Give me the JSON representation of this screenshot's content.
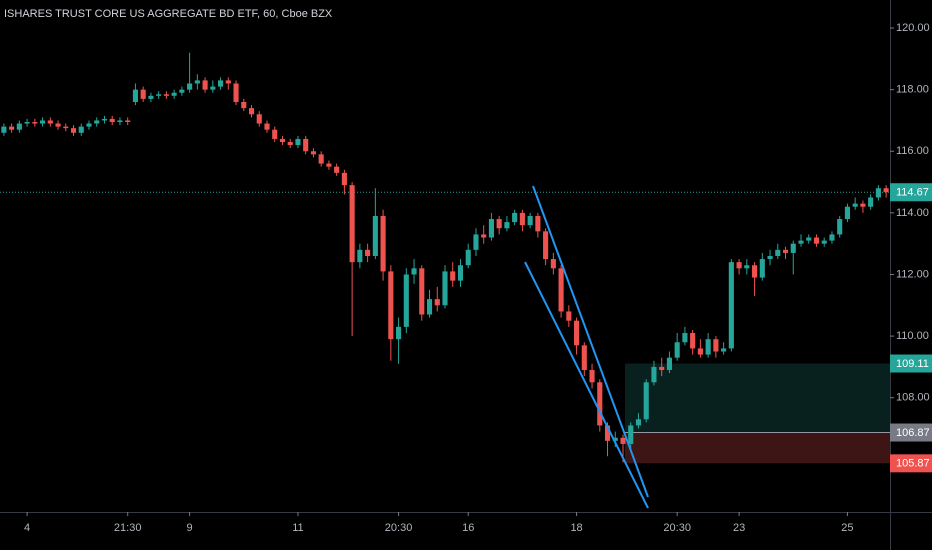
{
  "chart_data": {
    "type": "candlestick",
    "title": "ISHARES TRUST CORE US AGGREGATE BD ETF, 60, Cboe BZX",
    "categories": [
      null,
      null,
      null,
      "4",
      null,
      null,
      null,
      null,
      null,
      null,
      null,
      null,
      null,
      null,
      null,
      null,
      "21:30",
      null,
      null,
      null,
      null,
      null,
      null,
      null,
      "9",
      null,
      null,
      null,
      null,
      null,
      null,
      null,
      null,
      null,
      null,
      null,
      null,
      null,
      "11",
      null,
      null,
      null,
      null,
      null,
      null,
      null,
      null,
      null,
      null,
      null,
      null,
      "20:30",
      null,
      null,
      null,
      null,
      null,
      null,
      null,
      null,
      "16",
      null,
      null,
      null,
      null,
      null,
      null,
      null,
      null,
      null,
      null,
      null,
      null,
      null,
      "18",
      null,
      null,
      null,
      null,
      null,
      null,
      null,
      null,
      null,
      null,
      null,
      null,
      "20:30",
      null,
      null,
      null,
      null,
      null,
      null,
      null,
      "23",
      null,
      null,
      null,
      null,
      null,
      null,
      null,
      null,
      null,
      null,
      null,
      null,
      null,
      "25",
      null,
      null,
      null,
      null,
      null
    ],
    "open": [
      116.6,
      116.8,
      116.7,
      116.9,
      116.95,
      116.9,
      117.0,
      116.9,
      116.8,
      116.75,
      116.6,
      116.8,
      116.9,
      117.0,
      117.05,
      116.95,
      117.0,
      117.6,
      118.0,
      117.7,
      117.8,
      117.85,
      117.8,
      117.9,
      118.0,
      118.2,
      118.3,
      118.0,
      118.1,
      118.3,
      118.2,
      117.6,
      117.4,
      117.2,
      116.9,
      116.7,
      116.4,
      116.3,
      116.2,
      116.4,
      116.0,
      115.9,
      115.6,
      115.5,
      115.3,
      114.9,
      112.4,
      112.8,
      112.6,
      113.9,
      112.1,
      109.9,
      110.3,
      112.0,
      112.2,
      110.7,
      111.2,
      111.0,
      112.1,
      111.8,
      112.3,
      112.8,
      113.3,
      113.2,
      113.8,
      113.5,
      113.7,
      114.0,
      113.6,
      113.9,
      113.4,
      112.5,
      112.2,
      110.8,
      110.5,
      109.7,
      108.9,
      108.5,
      107.1,
      106.6,
      106.7,
      106.5,
      107.1,
      107.3,
      108.5,
      109.0,
      108.9,
      109.3,
      109.8,
      110.1,
      109.6,
      109.4,
      109.9,
      109.5,
      109.6,
      112.4,
      112.2,
      112.3,
      111.9,
      112.5,
      112.6,
      112.8,
      112.7,
      113.0,
      113.1,
      113.2,
      113.0,
      113.1,
      113.3,
      113.8,
      114.2,
      114.3,
      114.2,
      114.5,
      114.8
    ],
    "high": [
      116.9,
      116.9,
      117.0,
      117.05,
      117.05,
      117.1,
      117.1,
      117.0,
      116.9,
      116.85,
      116.9,
      117.0,
      117.1,
      117.15,
      117.15,
      117.1,
      117.1,
      118.2,
      118.1,
      117.9,
      117.95,
      117.95,
      118.0,
      118.1,
      119.2,
      118.5,
      118.4,
      118.3,
      118.4,
      118.4,
      118.3,
      117.7,
      117.5,
      117.3,
      117.0,
      116.8,
      116.5,
      116.4,
      116.5,
      116.5,
      116.1,
      116.0,
      115.7,
      115.6,
      115.4,
      115.0,
      113.0,
      113.0,
      114.8,
      114.1,
      112.3,
      110.6,
      112.2,
      112.5,
      112.3,
      111.5,
      111.6,
      112.3,
      112.4,
      112.5,
      113.0,
      113.5,
      113.6,
      114.0,
      113.9,
      113.9,
      114.1,
      114.1,
      114.0,
      114.0,
      113.5,
      112.7,
      112.3,
      111.0,
      110.6,
      109.8,
      109.1,
      108.6,
      107.2,
      106.9,
      106.8,
      107.2,
      107.5,
      108.6,
      109.2,
      109.3,
      109.5,
      110.1,
      110.3,
      110.2,
      109.9,
      110.1,
      110.0,
      109.8,
      112.5,
      112.5,
      112.5,
      112.4,
      112.7,
      112.8,
      113.0,
      112.9,
      113.1,
      113.3,
      113.3,
      113.3,
      113.2,
      113.4,
      113.9,
      114.3,
      114.5,
      114.4,
      114.6,
      114.9,
      114.9
    ],
    "low": [
      116.5,
      116.6,
      116.6,
      116.8,
      116.8,
      116.8,
      116.8,
      116.7,
      116.65,
      116.5,
      116.5,
      116.7,
      116.8,
      116.9,
      116.85,
      116.85,
      116.85,
      117.5,
      117.6,
      117.6,
      117.7,
      117.7,
      117.7,
      117.8,
      117.9,
      118.0,
      117.9,
      117.9,
      118.0,
      118.0,
      117.5,
      117.3,
      117.1,
      116.8,
      116.6,
      116.3,
      116.2,
      116.1,
      116.1,
      115.9,
      115.8,
      115.5,
      115.4,
      115.2,
      114.6,
      110.0,
      112.2,
      112.4,
      112.5,
      111.8,
      109.2,
      109.1,
      110.1,
      111.7,
      110.5,
      110.6,
      110.8,
      110.9,
      111.6,
      111.6,
      112.2,
      112.6,
      113.0,
      113.1,
      113.3,
      113.4,
      113.6,
      113.4,
      113.5,
      113.2,
      112.3,
      112.0,
      110.6,
      110.3,
      109.4,
      108.7,
      108.3,
      106.9,
      106.1,
      106.4,
      105.9,
      106.3,
      107.0,
      107.2,
      108.4,
      108.7,
      108.8,
      109.2,
      109.7,
      109.4,
      109.3,
      109.3,
      109.3,
      109.4,
      109.5,
      112.0,
      112.0,
      111.3,
      111.8,
      112.3,
      112.5,
      112.5,
      112.0,
      112.9,
      113.0,
      112.9,
      112.9,
      113.0,
      113.2,
      113.7,
      114.1,
      114.0,
      114.1,
      114.4,
      114.5
    ],
    "close": [
      116.8,
      116.7,
      116.9,
      116.95,
      116.9,
      117.0,
      116.9,
      116.8,
      116.75,
      116.6,
      116.8,
      116.9,
      117.0,
      117.05,
      116.95,
      117.0,
      116.95,
      118.0,
      117.7,
      117.8,
      117.85,
      117.8,
      117.9,
      118.0,
      118.2,
      118.3,
      118.0,
      118.1,
      118.3,
      118.2,
      117.6,
      117.4,
      117.2,
      116.9,
      116.7,
      116.4,
      116.3,
      116.2,
      116.4,
      116.0,
      115.9,
      115.6,
      115.5,
      115.3,
      114.9,
      112.4,
      112.8,
      112.6,
      113.9,
      112.1,
      109.9,
      110.3,
      112.0,
      112.2,
      110.7,
      111.2,
      111.0,
      112.1,
      111.8,
      112.3,
      112.8,
      113.3,
      113.2,
      113.8,
      113.5,
      113.7,
      114.0,
      113.6,
      113.9,
      113.4,
      112.5,
      112.2,
      110.8,
      110.5,
      109.7,
      108.9,
      108.5,
      107.1,
      106.6,
      106.7,
      106.5,
      107.1,
      107.3,
      108.5,
      109.0,
      108.9,
      109.3,
      109.8,
      110.1,
      109.6,
      109.4,
      109.9,
      109.5,
      109.6,
      112.4,
      112.2,
      112.3,
      111.9,
      112.5,
      112.6,
      112.8,
      112.7,
      113.0,
      113.1,
      113.2,
      113.0,
      113.1,
      113.3,
      113.8,
      114.2,
      114.3,
      114.2,
      114.5,
      114.8,
      114.67
    ],
    "up_color": "#26a69a",
    "down_color": "#ef5350",
    "ylim": [
      104.29,
      120.91
    ],
    "yticks": [
      {
        "value": 108,
        "label": "108.00"
      },
      {
        "value": 110,
        "label": "110.00"
      },
      {
        "value": 112,
        "label": "112.00"
      },
      {
        "value": 114,
        "label": "114.00"
      },
      {
        "value": 116,
        "label": "116.00"
      },
      {
        "value": 118,
        "label": "118.00"
      },
      {
        "value": 120,
        "label": "120.00"
      }
    ],
    "last_price": 114.67,
    "levels": {
      "target": 109.11,
      "entry": 106.87,
      "stop": 105.87
    }
  }
}
